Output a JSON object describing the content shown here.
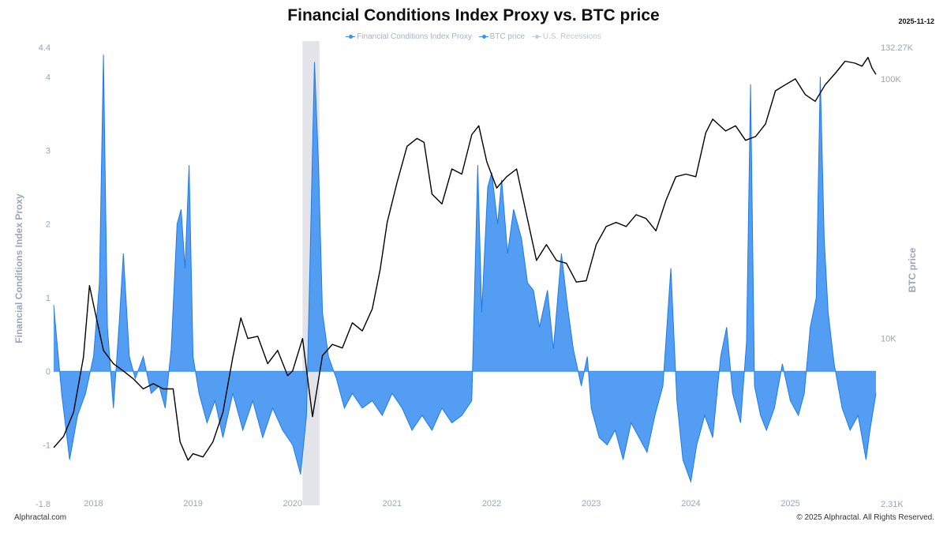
{
  "title": "Financial Conditions Index Proxy vs. BTC price",
  "date": "2025-11-12",
  "legend": [
    {
      "label": "Financial Conditions Index Proxy",
      "color": "#3a8ef0"
    },
    {
      "label": "BTC price",
      "color": "#3a8ef0"
    },
    {
      "label": "U.S. Recessions",
      "color": "#c8ccd6"
    }
  ],
  "footer": {
    "left": "Alphractal.com",
    "right": "© 2025 Alphractal. All Rights Reserved."
  },
  "chart_data": {
    "type": "area",
    "y_left": {
      "label": "Financial Conditions Index Proxy",
      "min": -1.8,
      "max": 4.4,
      "ticks": [
        "4.4",
        "4",
        "3",
        "2",
        "1",
        "0",
        "-1",
        "-1.8"
      ]
    },
    "y_right": {
      "label": "BTC price",
      "scale": "log",
      "min": 2310,
      "max": 132270,
      "ticks": [
        "132.27K",
        "100K",
        "10K",
        "2.31K"
      ]
    },
    "x_ticks": [
      "2018",
      "2019",
      "2020",
      "2021",
      "2022",
      "2023",
      "2024",
      "2025"
    ],
    "recession_band": {
      "start": 2020.1,
      "end": 2020.27
    },
    "series": [
      {
        "name": "Financial Conditions Index Proxy",
        "color": "#3a8ef0",
        "points": [
          [
            2017.6,
            0.9
          ],
          [
            2017.68,
            -0.3
          ],
          [
            2017.76,
            -1.2
          ],
          [
            2017.84,
            -0.6
          ],
          [
            2017.92,
            -0.3
          ],
          [
            2018.0,
            0.2
          ],
          [
            2018.06,
            1.2
          ],
          [
            2018.1,
            4.3
          ],
          [
            2018.14,
            0.6
          ],
          [
            2018.2,
            -0.5
          ],
          [
            2018.26,
            0.7
          ],
          [
            2018.3,
            1.6
          ],
          [
            2018.36,
            0.2
          ],
          [
            2018.42,
            -0.1
          ],
          [
            2018.5,
            0.2
          ],
          [
            2018.58,
            -0.3
          ],
          [
            2018.66,
            -0.2
          ],
          [
            2018.72,
            -0.5
          ],
          [
            2018.78,
            0.3
          ],
          [
            2018.84,
            2.0
          ],
          [
            2018.88,
            2.2
          ],
          [
            2018.92,
            1.4
          ],
          [
            2018.96,
            2.8
          ],
          [
            2019.0,
            0.2
          ],
          [
            2019.06,
            -0.3
          ],
          [
            2019.14,
            -0.7
          ],
          [
            2019.22,
            -0.4
          ],
          [
            2019.3,
            -0.9
          ],
          [
            2019.4,
            -0.3
          ],
          [
            2019.5,
            -0.8
          ],
          [
            2019.6,
            -0.4
          ],
          [
            2019.7,
            -0.9
          ],
          [
            2019.8,
            -0.5
          ],
          [
            2019.9,
            -0.8
          ],
          [
            2020.0,
            -1.0
          ],
          [
            2020.08,
            -1.4
          ],
          [
            2020.14,
            -0.6
          ],
          [
            2020.18,
            1.8
          ],
          [
            2020.22,
            4.2
          ],
          [
            2020.26,
            2.8
          ],
          [
            2020.3,
            0.8
          ],
          [
            2020.36,
            0.2
          ],
          [
            2020.44,
            -0.1
          ],
          [
            2020.52,
            -0.5
          ],
          [
            2020.6,
            -0.3
          ],
          [
            2020.7,
            -0.5
          ],
          [
            2020.8,
            -0.4
          ],
          [
            2020.9,
            -0.6
          ],
          [
            2021.0,
            -0.3
          ],
          [
            2021.1,
            -0.5
          ],
          [
            2021.2,
            -0.8
          ],
          [
            2021.3,
            -0.6
          ],
          [
            2021.4,
            -0.8
          ],
          [
            2021.5,
            -0.5
          ],
          [
            2021.6,
            -0.7
          ],
          [
            2021.7,
            -0.6
          ],
          [
            2021.8,
            -0.4
          ],
          [
            2021.86,
            2.8
          ],
          [
            2021.9,
            0.8
          ],
          [
            2021.96,
            2.5
          ],
          [
            2022.0,
            2.7
          ],
          [
            2022.06,
            2.0
          ],
          [
            2022.1,
            2.6
          ],
          [
            2022.16,
            1.6
          ],
          [
            2022.22,
            2.2
          ],
          [
            2022.3,
            1.8
          ],
          [
            2022.36,
            1.2
          ],
          [
            2022.42,
            1.1
          ],
          [
            2022.48,
            0.6
          ],
          [
            2022.56,
            1.1
          ],
          [
            2022.62,
            0.3
          ],
          [
            2022.7,
            1.6
          ],
          [
            2022.76,
            0.9
          ],
          [
            2022.82,
            0.3
          ],
          [
            2022.9,
            -0.2
          ],
          [
            2022.96,
            0.2
          ],
          [
            2023.0,
            -0.5
          ],
          [
            2023.08,
            -0.9
          ],
          [
            2023.16,
            -1.0
          ],
          [
            2023.24,
            -0.8
          ],
          [
            2023.32,
            -1.2
          ],
          [
            2023.4,
            -0.7
          ],
          [
            2023.48,
            -0.9
          ],
          [
            2023.56,
            -1.1
          ],
          [
            2023.64,
            -0.6
          ],
          [
            2023.72,
            -0.2
          ],
          [
            2023.8,
            1.4
          ],
          [
            2023.86,
            -0.4
          ],
          [
            2023.92,
            -1.2
          ],
          [
            2024.0,
            -1.5
          ],
          [
            2024.06,
            -1.0
          ],
          [
            2024.14,
            -0.6
          ],
          [
            2024.22,
            -0.9
          ],
          [
            2024.3,
            0.2
          ],
          [
            2024.36,
            0.6
          ],
          [
            2024.42,
            -0.3
          ],
          [
            2024.5,
            -0.7
          ],
          [
            2024.56,
            0.4
          ],
          [
            2024.6,
            3.9
          ],
          [
            2024.64,
            -0.2
          ],
          [
            2024.7,
            -0.6
          ],
          [
            2024.76,
            -0.8
          ],
          [
            2024.84,
            -0.5
          ],
          [
            2024.92,
            0.1
          ],
          [
            2025.0,
            -0.4
          ],
          [
            2025.08,
            -0.6
          ],
          [
            2025.14,
            -0.3
          ],
          [
            2025.2,
            0.6
          ],
          [
            2025.26,
            1.0
          ],
          [
            2025.3,
            4.0
          ],
          [
            2025.34,
            1.8
          ],
          [
            2025.38,
            0.8
          ],
          [
            2025.44,
            0.1
          ],
          [
            2025.52,
            -0.5
          ],
          [
            2025.6,
            -0.8
          ],
          [
            2025.68,
            -0.6
          ],
          [
            2025.76,
            -1.2
          ],
          [
            2025.8,
            -0.8
          ],
          [
            2025.86,
            -0.3
          ]
        ]
      },
      {
        "name": "BTC price",
        "color": "#000000",
        "points": [
          [
            2017.6,
            3800
          ],
          [
            2017.7,
            4200
          ],
          [
            2017.8,
            5200
          ],
          [
            2017.9,
            8500
          ],
          [
            2017.96,
            16000
          ],
          [
            2018.0,
            13500
          ],
          [
            2018.1,
            9000
          ],
          [
            2018.2,
            8000
          ],
          [
            2018.3,
            7500
          ],
          [
            2018.4,
            7000
          ],
          [
            2018.5,
            6400
          ],
          [
            2018.6,
            6700
          ],
          [
            2018.7,
            6400
          ],
          [
            2018.8,
            6400
          ],
          [
            2018.87,
            4000
          ],
          [
            2018.95,
            3400
          ],
          [
            2019.0,
            3600
          ],
          [
            2019.1,
            3500
          ],
          [
            2019.2,
            4000
          ],
          [
            2019.3,
            5200
          ],
          [
            2019.4,
            8500
          ],
          [
            2019.48,
            12000
          ],
          [
            2019.55,
            10000
          ],
          [
            2019.65,
            10200
          ],
          [
            2019.75,
            8000
          ],
          [
            2019.85,
            9000
          ],
          [
            2019.95,
            7200
          ],
          [
            2020.0,
            7500
          ],
          [
            2020.1,
            10000
          ],
          [
            2020.2,
            5000
          ],
          [
            2020.3,
            8600
          ],
          [
            2020.4,
            9500
          ],
          [
            2020.5,
            9200
          ],
          [
            2020.6,
            11500
          ],
          [
            2020.7,
            10700
          ],
          [
            2020.8,
            13000
          ],
          [
            2020.88,
            18500
          ],
          [
            2020.95,
            28000
          ],
          [
            2021.05,
            40000
          ],
          [
            2021.15,
            55000
          ],
          [
            2021.25,
            59000
          ],
          [
            2021.32,
            57000
          ],
          [
            2021.4,
            36000
          ],
          [
            2021.5,
            33000
          ],
          [
            2021.6,
            45000
          ],
          [
            2021.7,
            43000
          ],
          [
            2021.8,
            61000
          ],
          [
            2021.87,
            66000
          ],
          [
            2021.95,
            48000
          ],
          [
            2022.05,
            38000
          ],
          [
            2022.15,
            42000
          ],
          [
            2022.25,
            45000
          ],
          [
            2022.35,
            30000
          ],
          [
            2022.45,
            20000
          ],
          [
            2022.55,
            23000
          ],
          [
            2022.65,
            20000
          ],
          [
            2022.75,
            19500
          ],
          [
            2022.85,
            16500
          ],
          [
            2022.95,
            16700
          ],
          [
            2023.05,
            23000
          ],
          [
            2023.15,
            27000
          ],
          [
            2023.25,
            28000
          ],
          [
            2023.35,
            27000
          ],
          [
            2023.45,
            30000
          ],
          [
            2023.55,
            29000
          ],
          [
            2023.65,
            26000
          ],
          [
            2023.75,
            34000
          ],
          [
            2023.85,
            42000
          ],
          [
            2023.95,
            43000
          ],
          [
            2024.05,
            42000
          ],
          [
            2024.15,
            62000
          ],
          [
            2024.22,
            70000
          ],
          [
            2024.35,
            63000
          ],
          [
            2024.45,
            66000
          ],
          [
            2024.55,
            58000
          ],
          [
            2024.65,
            60000
          ],
          [
            2024.75,
            67000
          ],
          [
            2024.85,
            90000
          ],
          [
            2024.95,
            95000
          ],
          [
            2025.05,
            100000
          ],
          [
            2025.15,
            87000
          ],
          [
            2025.25,
            82000
          ],
          [
            2025.35,
            95000
          ],
          [
            2025.45,
            105000
          ],
          [
            2025.55,
            117000
          ],
          [
            2025.65,
            115000
          ],
          [
            2025.72,
            112000
          ],
          [
            2025.78,
            121000
          ],
          [
            2025.82,
            110000
          ],
          [
            2025.86,
            104000
          ]
        ]
      }
    ]
  }
}
